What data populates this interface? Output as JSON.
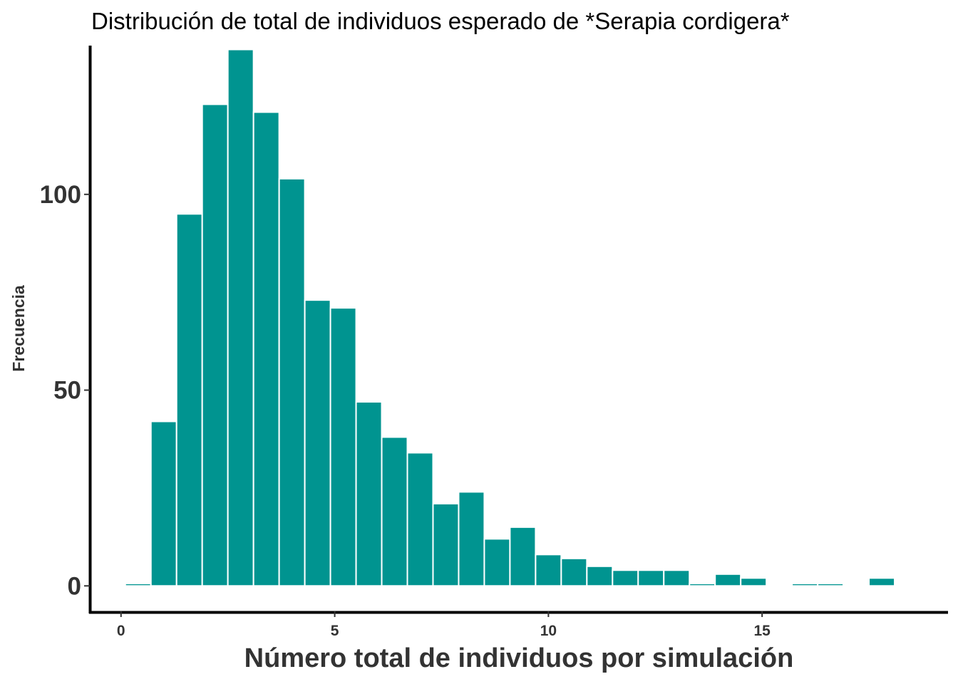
{
  "chart_data": {
    "type": "bar",
    "title": "Distribución de total de individuos esperado de *Serapia cordigera*",
    "xlabel": "Número total de individuos por simulación",
    "ylabel": "Frecuencia",
    "xlim": [
      -0.73,
      19.35
    ],
    "ylim": [
      -6.5,
      138
    ],
    "bin_width": 0.6,
    "bar_color": "#009490",
    "bar_edge_color": "#ffffff",
    "x_ticks": [
      0,
      5,
      10,
      15
    ],
    "y_ticks": [
      0,
      50,
      100
    ],
    "bins": [
      {
        "x": 0.4,
        "count": 0.6
      },
      {
        "x": 1.0,
        "count": 42
      },
      {
        "x": 1.6,
        "count": 95
      },
      {
        "x": 2.2,
        "count": 123
      },
      {
        "x": 2.8,
        "count": 137
      },
      {
        "x": 3.4,
        "count": 121
      },
      {
        "x": 4.0,
        "count": 104
      },
      {
        "x": 4.6,
        "count": 73
      },
      {
        "x": 5.2,
        "count": 71
      },
      {
        "x": 5.8,
        "count": 47
      },
      {
        "x": 6.4,
        "count": 38
      },
      {
        "x": 7.0,
        "count": 34
      },
      {
        "x": 7.6,
        "count": 21
      },
      {
        "x": 8.2,
        "count": 24
      },
      {
        "x": 8.8,
        "count": 12
      },
      {
        "x": 9.4,
        "count": 15
      },
      {
        "x": 10.0,
        "count": 8
      },
      {
        "x": 10.6,
        "count": 7
      },
      {
        "x": 11.2,
        "count": 5
      },
      {
        "x": 11.8,
        "count": 4
      },
      {
        "x": 12.4,
        "count": 4
      },
      {
        "x": 13.0,
        "count": 4
      },
      {
        "x": 13.6,
        "count": 0.6
      },
      {
        "x": 14.2,
        "count": 3
      },
      {
        "x": 14.8,
        "count": 2
      },
      {
        "x": 16.0,
        "count": 0.6
      },
      {
        "x": 16.6,
        "count": 0.6
      },
      {
        "x": 17.8,
        "count": 2
      }
    ]
  }
}
